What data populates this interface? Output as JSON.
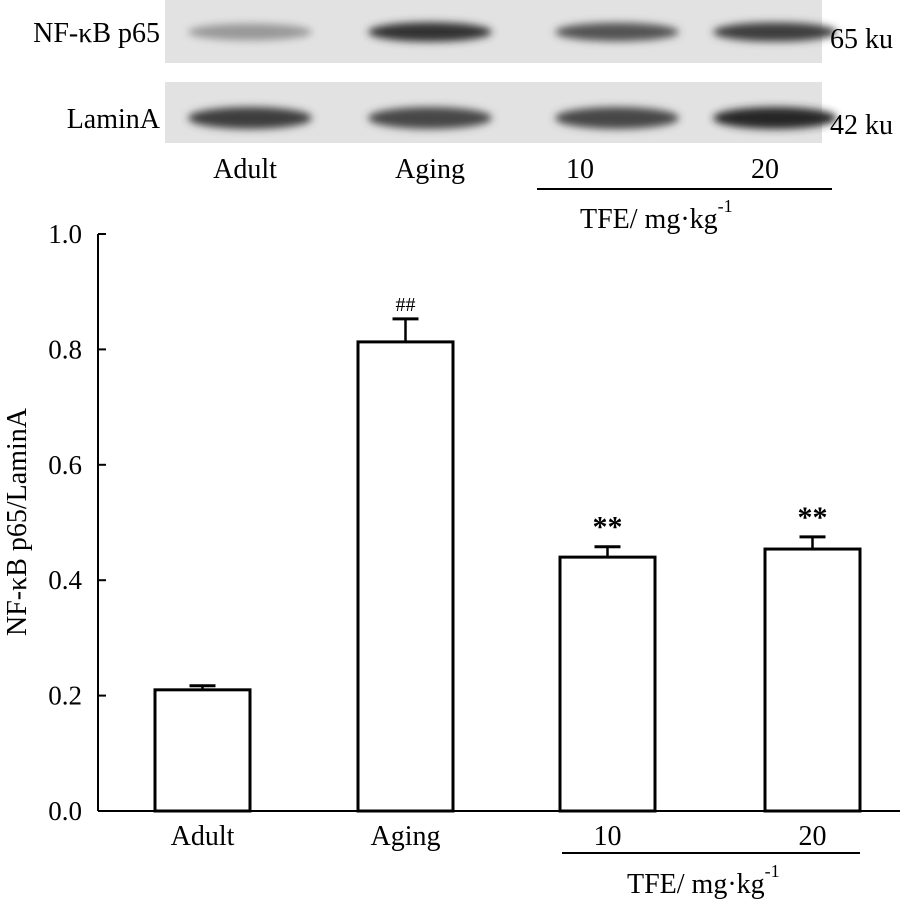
{
  "blot": {
    "rows": [
      {
        "label": "NF-κB p65",
        "size": "65 ku",
        "intensities": [
          0.45,
          0.9,
          0.75,
          0.85
        ]
      },
      {
        "label": "LaminA",
        "size": "42 ku",
        "intensities": [
          0.85,
          0.8,
          0.8,
          0.95
        ]
      }
    ],
    "lanes": [
      "Adult",
      "Aging",
      "10",
      "20"
    ],
    "group_label": "TFE/ mg·kg",
    "group_label_sup": "-1"
  },
  "chart_data": {
    "type": "bar",
    "categories": [
      "Adult",
      "Aging",
      "10",
      "20"
    ],
    "values": [
      0.21,
      0.813,
      0.44,
      0.454
    ],
    "errors": [
      0.007,
      0.04,
      0.018,
      0.021
    ],
    "annotations": [
      "",
      "##",
      "**",
      "**"
    ],
    "ylabel": "NF-κB p65/LaminA",
    "xlabel": "",
    "group_label": "TFE/ mg·kg",
    "group_label_sup": "-1",
    "ylim": [
      0,
      1.0
    ],
    "yticks": [
      "0.0",
      "0.2",
      "0.4",
      "0.6",
      "0.8",
      "1.0"
    ],
    "grid": false
  }
}
